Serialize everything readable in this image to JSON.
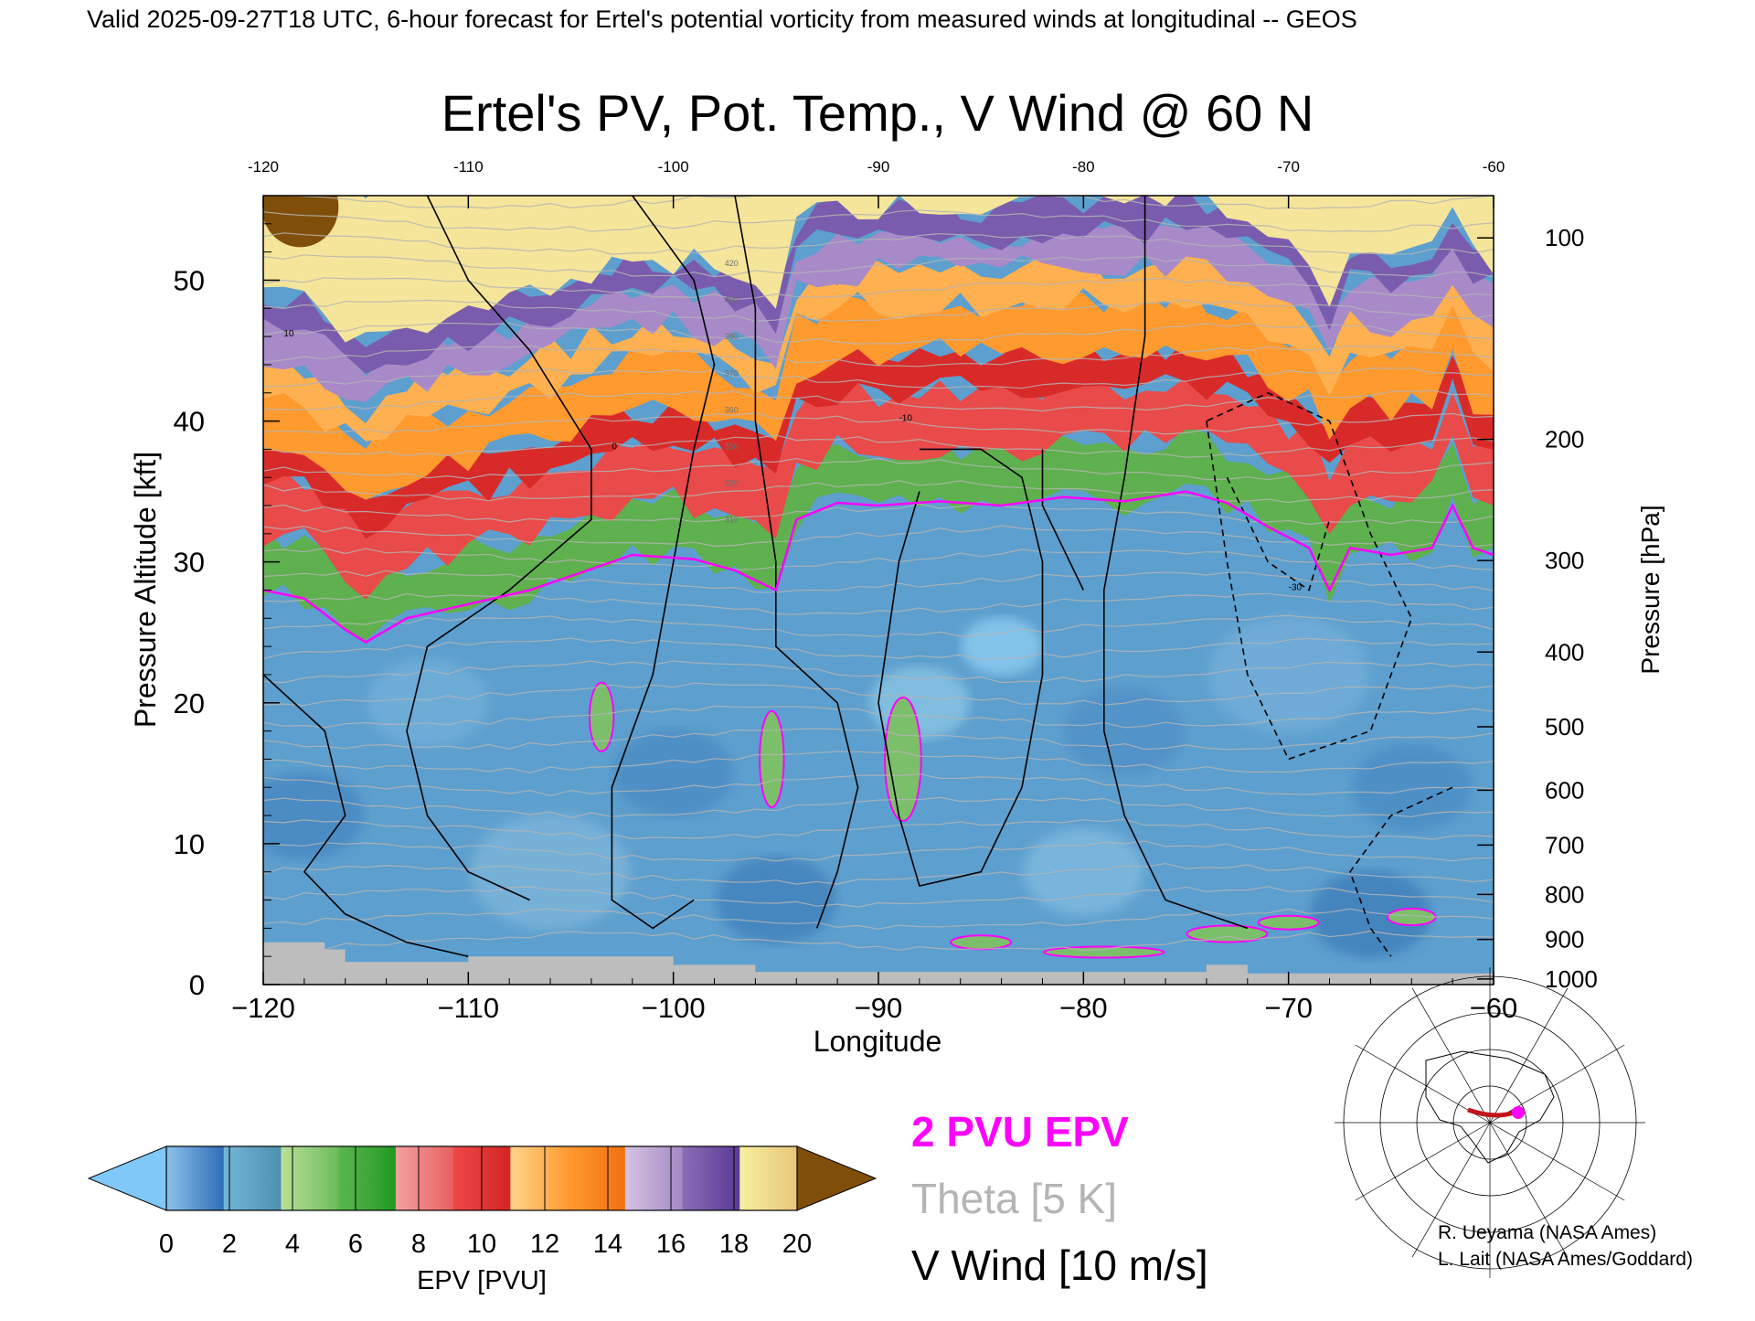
{
  "header": {
    "valid_line": "Valid 2025-09-27T18 UTC, 6-hour forecast for Ertel's potential vorticity from measured winds at longitudinal -- GEOS"
  },
  "chart_data": {
    "type": "heatmap",
    "title": "Ertel's PV, Pot. Temp., V Wind @ 60 N",
    "xlabel": "Longitude",
    "ylabel": "Pressure Altitude [kft]",
    "ylabel_right": "Pressure [hPa]",
    "xlim": [
      -120,
      -60
    ],
    "ylim": [
      0,
      56
    ],
    "x_ticks": [
      -120,
      -110,
      -100,
      -90,
      -80,
      -70,
      -60
    ],
    "x_tick_labels": [
      "−120",
      "−110",
      "−100",
      "−90",
      "−80",
      "−70",
      "−60"
    ],
    "x_top_tick_labels": [
      "-120",
      "-110",
      "-100",
      "-90",
      "-80",
      "-70",
      "-60"
    ],
    "y_ticks": [
      0,
      10,
      20,
      30,
      40,
      50
    ],
    "y_tick_labels": [
      "0",
      "10",
      "20",
      "30",
      "40",
      "50"
    ],
    "pressure_ticks": [
      {
        "hPa": 100,
        "kft": 53.0,
        "label": "100"
      },
      {
        "hPa": 200,
        "kft": 38.7,
        "label": "200"
      },
      {
        "hPa": 300,
        "kft": 30.1,
        "label": "300"
      },
      {
        "hPa": 400,
        "kft": 23.6,
        "label": "400"
      },
      {
        "hPa": 500,
        "kft": 18.3,
        "label": "500"
      },
      {
        "hPa": 600,
        "kft": 13.8,
        "label": "600"
      },
      {
        "hPa": 700,
        "kft": 9.9,
        "label": "700"
      },
      {
        "hPa": 800,
        "kft": 6.4,
        "label": "800"
      },
      {
        "hPa": 900,
        "kft": 3.2,
        "label": "900"
      },
      {
        "hPa": 1000,
        "kft": 0.4,
        "label": "1000"
      }
    ],
    "tropopause_2pvu_kft": [
      {
        "lon": -120,
        "kft": 28.0
      },
      {
        "lon": -118,
        "kft": 27.4
      },
      {
        "lon": -116,
        "kft": 25.2
      },
      {
        "lon": -115,
        "kft": 24.3
      },
      {
        "lon": -113,
        "kft": 26.0
      },
      {
        "lon": -110,
        "kft": 27.0
      },
      {
        "lon": -107,
        "kft": 28.0
      },
      {
        "lon": -104,
        "kft": 29.5
      },
      {
        "lon": -102,
        "kft": 30.5
      },
      {
        "lon": -99,
        "kft": 30.2
      },
      {
        "lon": -97,
        "kft": 29.4
      },
      {
        "lon": -95,
        "kft": 28.0
      },
      {
        "lon": -94,
        "kft": 33.0
      },
      {
        "lon": -92,
        "kft": 34.2
      },
      {
        "lon": -90,
        "kft": 34.0
      },
      {
        "lon": -87,
        "kft": 34.3
      },
      {
        "lon": -84,
        "kft": 34.0
      },
      {
        "lon": -81,
        "kft": 34.6
      },
      {
        "lon": -78,
        "kft": 34.3
      },
      {
        "lon": -75,
        "kft": 35.0
      },
      {
        "lon": -73,
        "kft": 34.2
      },
      {
        "lon": -71,
        "kft": 32.5
      },
      {
        "lon": -69,
        "kft": 31.0
      },
      {
        "lon": -68,
        "kft": 28.0
      },
      {
        "lon": -67,
        "kft": 31.0
      },
      {
        "lon": -65,
        "kft": 30.5
      },
      {
        "lon": -63,
        "kft": 31.0
      },
      {
        "lon": -62,
        "kft": 34.0
      },
      {
        "lon": -61,
        "kft": 31.0
      },
      {
        "lon": -60,
        "kft": 30.5
      }
    ],
    "theta_labels": [
      "420",
      "400",
      "380",
      "370",
      "360",
      "350",
      "320",
      "310"
    ],
    "vwind_labels": [
      "10",
      "0",
      "-10",
      "-30"
    ],
    "series": [
      {
        "name": "2 PVU EPV",
        "color": "#ff00ff"
      },
      {
        "name": "Theta [5 K]",
        "color": "#b4b4b4"
      },
      {
        "name": "V Wind [10 m/s]",
        "color": "#000000"
      }
    ]
  },
  "colorbar": {
    "label": "EPV [PVU]",
    "tick_labels": [
      "0",
      "2",
      "4",
      "6",
      "8",
      "10",
      "12",
      "14",
      "16",
      "18",
      "20"
    ],
    "under_color": "#7fc8f8",
    "over_color": "#7f4f0a",
    "segments": [
      {
        "from": "#8cc2ea",
        "to": "#2f6db6"
      },
      {
        "from": "#74b6d6",
        "to": "#4c8fb0"
      },
      {
        "from": "#b9e09a",
        "to": "#6dbb5a"
      },
      {
        "from": "#5cb650",
        "to": "#229922"
      },
      {
        "from": "#f3a0a0",
        "to": "#e96060"
      },
      {
        "from": "#ee4848",
        "to": "#d42424"
      },
      {
        "from": "#ffd48a",
        "to": "#ff9b30"
      },
      {
        "from": "#ff9a30",
        "to": "#f07010"
      },
      {
        "from": "#d7c4e2",
        "to": "#a487c4"
      },
      {
        "from": "#8b6cb6",
        "to": "#5a3a96"
      },
      {
        "from": "#f8f0a0",
        "to": "#e7c57a"
      }
    ]
  },
  "legend": {
    "pv_label": "2 PVU EPV",
    "theta_label": "Theta [5 K]",
    "wind_label": "V Wind [10 m/s]",
    "pv_color": "#ff00ff",
    "theta_color": "#b4b4b4",
    "wind_color": "#000000"
  },
  "credits": {
    "line1": "R. Ueyama (NASA Ames)",
    "line2": "L. Lait (NASA Ames/Goddard)"
  },
  "colors": {
    "background": "#ffffff",
    "terrain": "#bdbdbd",
    "pv_contour": "#ff00ff",
    "route_line": "#c0141a",
    "marker": "#ff00ff"
  }
}
